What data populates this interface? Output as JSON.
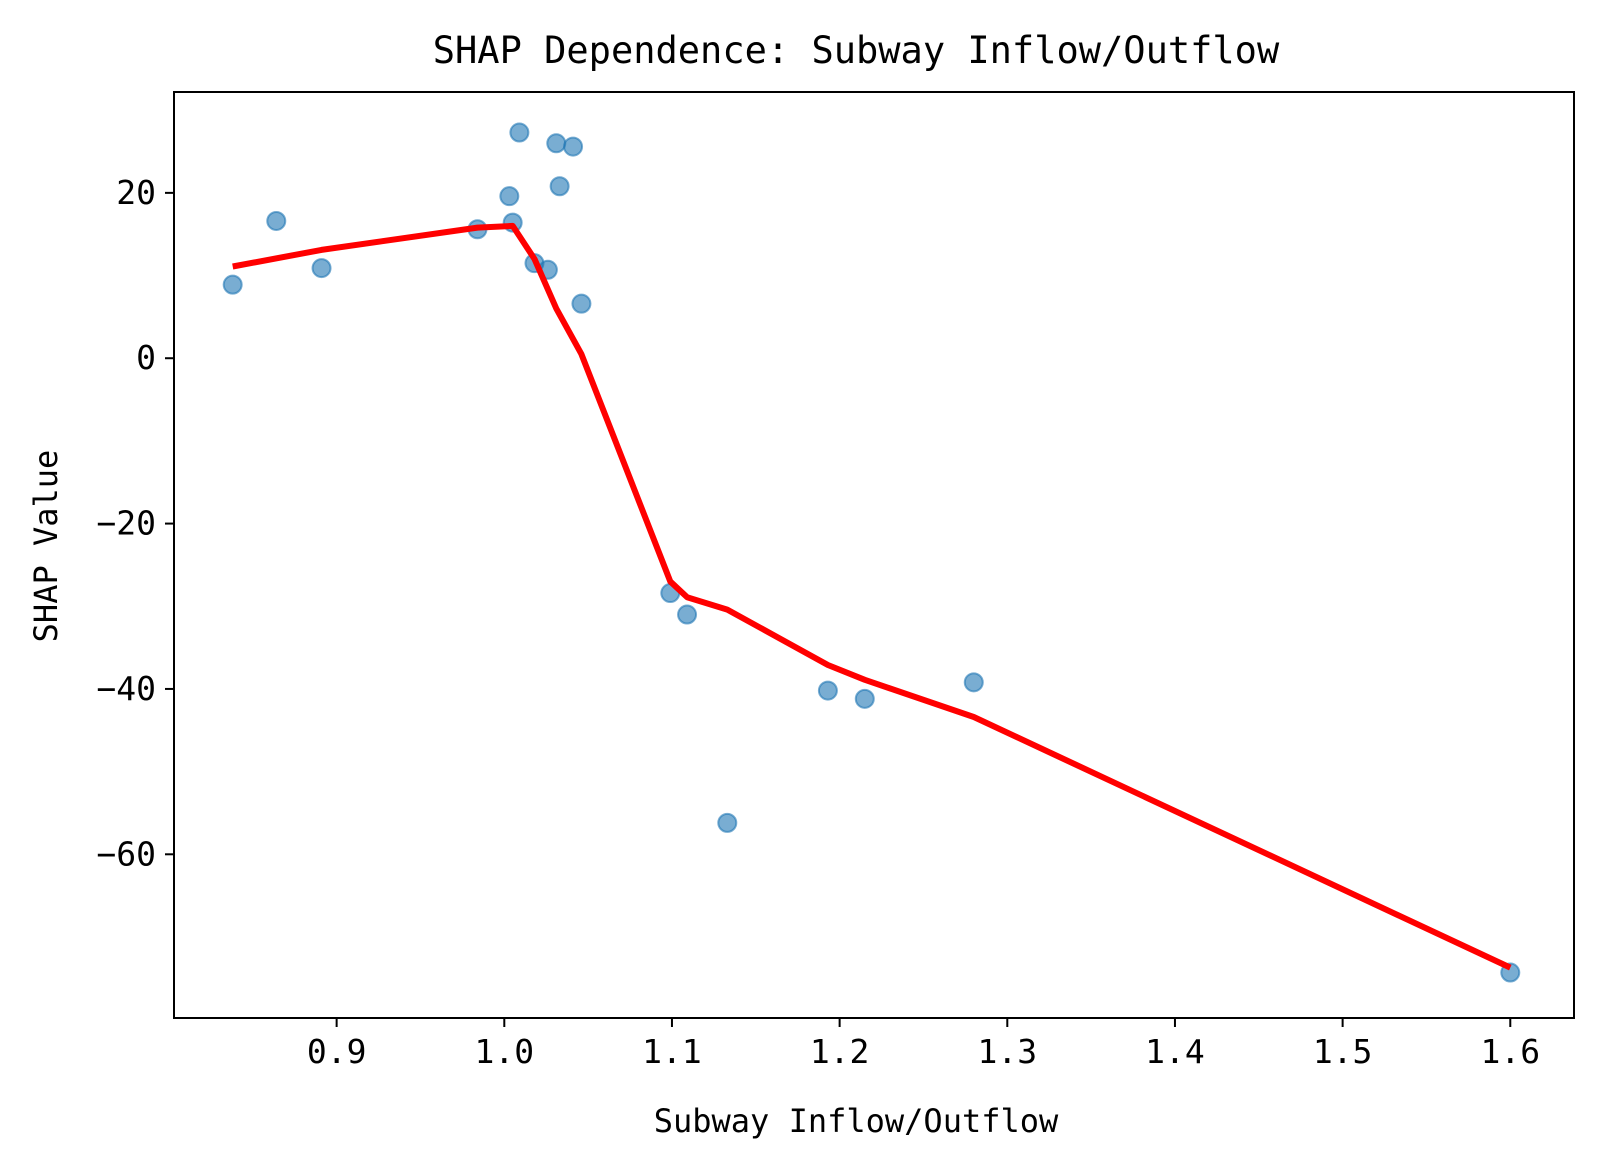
{
  "chart_data": {
    "type": "scatter",
    "title": "SHAP Dependence: Subway Inflow/Outflow",
    "xlabel": "Subway Inflow/Outflow",
    "ylabel": "SHAP Value",
    "xlim": [
      0.803,
      1.638
    ],
    "ylim": [
      -79.8,
      32.2
    ],
    "xticks": [
      0.9,
      1.0,
      1.1,
      1.2,
      1.3,
      1.4,
      1.5,
      1.6
    ],
    "xtick_labels": [
      "0.9",
      "1.0",
      "1.1",
      "1.2",
      "1.3",
      "1.4",
      "1.5",
      "1.6"
    ],
    "yticks": [
      20,
      0,
      -20,
      -40,
      -60
    ],
    "ytick_labels": [
      "20",
      "0",
      "−20",
      "−40",
      "−60"
    ],
    "grid": false,
    "legend": false,
    "colors": {
      "points": "#1f77b4",
      "trend": "#ff0000"
    },
    "series": [
      {
        "type": "scatter",
        "points": [
          [
            0.838,
            8.9
          ],
          [
            0.864,
            16.6
          ],
          [
            0.891,
            10.9
          ],
          [
            0.984,
            15.6
          ],
          [
            1.003,
            19.6
          ],
          [
            1.005,
            16.4
          ],
          [
            1.009,
            27.3
          ],
          [
            1.018,
            11.5
          ],
          [
            1.026,
            10.7
          ],
          [
            1.031,
            26.0
          ],
          [
            1.033,
            20.8
          ],
          [
            1.041,
            25.6
          ],
          [
            1.046,
            6.6
          ],
          [
            1.099,
            -28.4
          ],
          [
            1.109,
            -31.0
          ],
          [
            1.133,
            -56.2
          ],
          [
            1.193,
            -40.2
          ],
          [
            1.215,
            -41.2
          ],
          [
            1.28,
            -39.2
          ],
          [
            1.6,
            -74.3
          ]
        ]
      },
      {
        "type": "line",
        "points": [
          [
            0.838,
            11.1
          ],
          [
            0.891,
            13.1
          ],
          [
            0.984,
            15.8
          ],
          [
            1.005,
            16.0
          ],
          [
            1.018,
            12.0
          ],
          [
            1.031,
            6.0
          ],
          [
            1.046,
            0.5
          ],
          [
            1.099,
            -27.0
          ],
          [
            1.109,
            -28.9
          ],
          [
            1.133,
            -30.4
          ],
          [
            1.193,
            -37.1
          ],
          [
            1.215,
            -38.9
          ],
          [
            1.28,
            -43.4
          ],
          [
            1.6,
            -73.7
          ]
        ]
      }
    ]
  }
}
